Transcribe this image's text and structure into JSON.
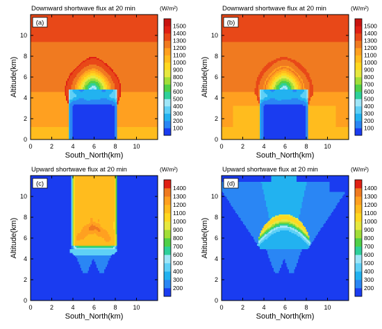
{
  "chart_data": [
    {
      "type": "heatmap",
      "panel_label": "(a)",
      "title": "Downward shortwave flux at 20 min",
      "units": "(W/m²)",
      "xlabel": "South_North(km)",
      "ylabel": "Altitude(km)",
      "xlim": [
        0,
        12
      ],
      "ylim": [
        0,
        12
      ],
      "xticks": [
        0,
        2,
        4,
        6,
        8,
        10
      ],
      "yticks": [
        0,
        2,
        4,
        6,
        8,
        10
      ],
      "colorbar_labels": [
        100,
        200,
        300,
        400,
        500,
        600,
        700,
        800,
        900,
        1000,
        1100,
        1200,
        1300,
        1400,
        1500
      ],
      "colorbar_colors": [
        "#1a3cf0",
        "#2a86f4",
        "#22b2f0",
        "#5fd0f6",
        "#9fe6f8",
        "#2ed09a",
        "#50d048",
        "#a2de38",
        "#e6e840",
        "#ffd820",
        "#ffbc1e",
        "#ffa020",
        "#f07a20",
        "#e84818",
        "#e02014",
        "#c81410"
      ]
    },
    {
      "type": "heatmap",
      "panel_label": "(b)",
      "title": "Downward shortwave flux at 20 min",
      "units": "(W/m²)",
      "xlabel": "South_North(km)",
      "ylabel": "Altitude(km)",
      "xlim": [
        0,
        12
      ],
      "ylim": [
        0,
        12
      ],
      "xticks": [
        0,
        2,
        4,
        6,
        8,
        10
      ],
      "yticks": [
        0,
        2,
        4,
        6,
        8,
        10
      ],
      "colorbar_labels": [
        100,
        200,
        300,
        400,
        500,
        600,
        700,
        800,
        900,
        1000,
        1100,
        1200,
        1300,
        1400,
        1500
      ],
      "colorbar_colors": [
        "#1a3cf0",
        "#2a86f4",
        "#22b2f0",
        "#5fd0f6",
        "#9fe6f8",
        "#2ed09a",
        "#50d048",
        "#a2de38",
        "#e6e840",
        "#ffd820",
        "#ffbc1e",
        "#ffa020",
        "#f07a20",
        "#e84818",
        "#e02014",
        "#c81410"
      ]
    },
    {
      "type": "heatmap",
      "panel_label": "(c)",
      "title": "Upward shortwave flux at 20 min",
      "units": "(W/m²)",
      "xlabel": "South_North(km)",
      "ylabel": "Altitude(km)",
      "xlim": [
        0,
        12
      ],
      "ylim": [
        0,
        12
      ],
      "xticks": [
        0,
        2,
        4,
        6,
        8,
        10
      ],
      "yticks": [
        0,
        2,
        4,
        6,
        8,
        10
      ],
      "colorbar_labels": [
        200,
        300,
        400,
        500,
        600,
        700,
        800,
        900,
        1000,
        1100,
        1200,
        1300,
        1400
      ],
      "colorbar_colors": [
        "#1a3cf0",
        "#2a86f4",
        "#22b2f0",
        "#5fd0f6",
        "#9fe6f8",
        "#2ed09a",
        "#50d048",
        "#a2de38",
        "#e6e840",
        "#ffd820",
        "#ffbc1e",
        "#ffa020",
        "#f07a20",
        "#e02014"
      ]
    },
    {
      "type": "heatmap",
      "panel_label": "(d)",
      "title": "Upward shortwave flux at 20 min",
      "units": "(W/m²)",
      "xlabel": "South_North(km)",
      "ylabel": "Altitude(km)",
      "xlim": [
        0,
        12
      ],
      "ylim": [
        0,
        12
      ],
      "xticks": [
        0,
        2,
        4,
        6,
        8,
        10
      ],
      "yticks": [
        0,
        2,
        4,
        6,
        8,
        10
      ],
      "colorbar_labels": [
        200,
        300,
        400,
        500,
        600,
        700,
        800,
        900,
        1000,
        1100,
        1200,
        1300,
        1400
      ],
      "colorbar_colors": [
        "#1a3cf0",
        "#2a86f4",
        "#22b2f0",
        "#5fd0f6",
        "#9fe6f8",
        "#2ed09a",
        "#50d048",
        "#a2de38",
        "#e6e840",
        "#ffd820",
        "#ffbc1e",
        "#ffa020",
        "#f07a20",
        "#e02014"
      ]
    }
  ]
}
